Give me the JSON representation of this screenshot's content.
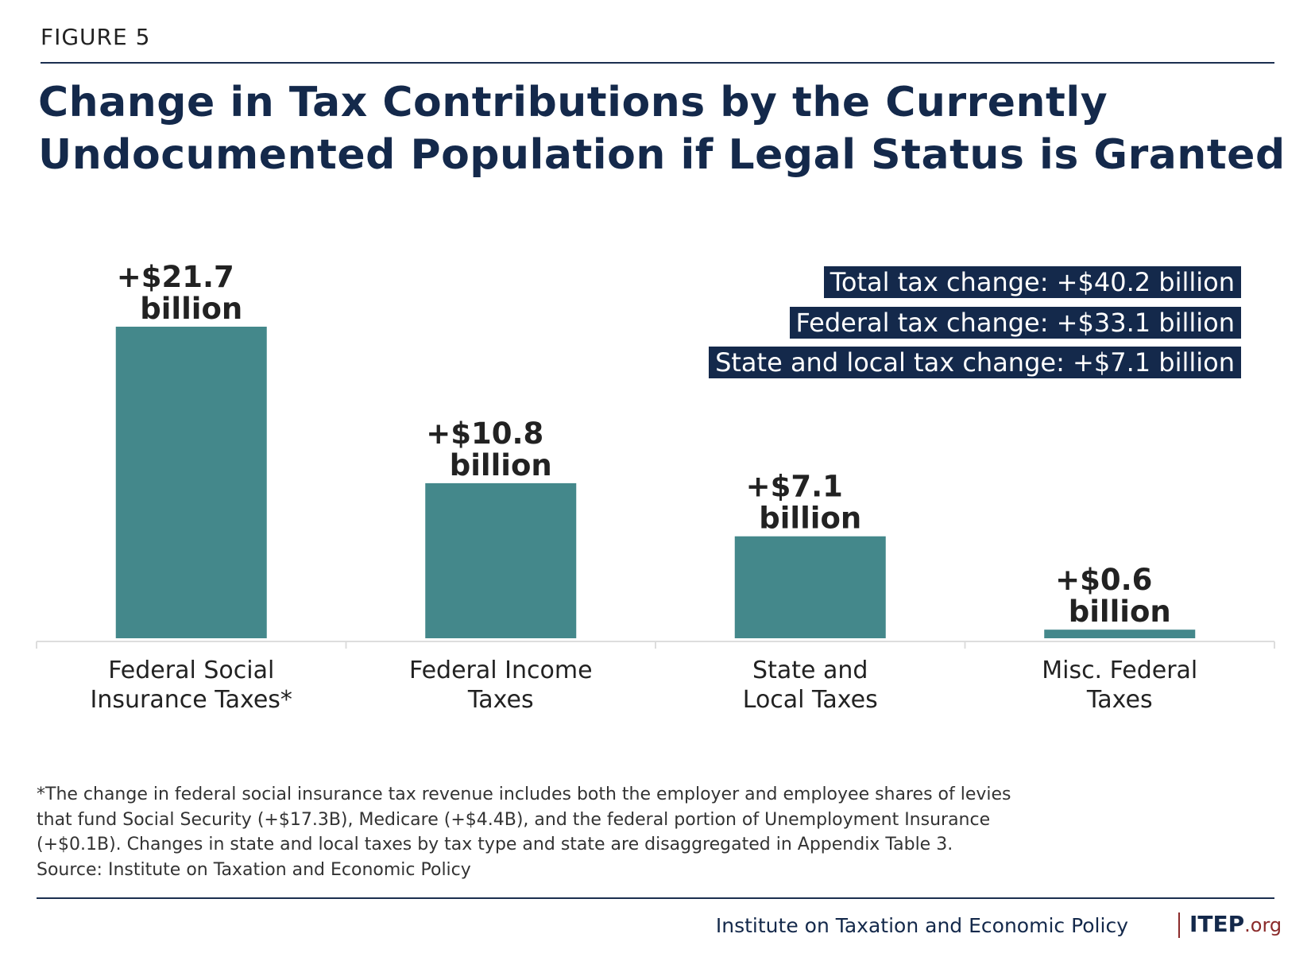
{
  "figure_label": "FIGURE 5",
  "colors": {
    "bar": "#44888b",
    "title": "#14294b",
    "box": "#14294b",
    "accent": "#8b2b2b"
  },
  "chart_data": {
    "type": "bar",
    "title": [
      "Change in Tax Contributions by the Currently",
      "Undocumented Population if Legal Status is Granted"
    ],
    "categories": [
      [
        "Federal Social",
        "Insurance Taxes*"
      ],
      [
        "Federal Income",
        "Taxes"
      ],
      [
        "State and",
        "Local Taxes"
      ],
      [
        "Misc. Federal",
        "Taxes"
      ]
    ],
    "values": [
      21.7,
      10.8,
      7.1,
      0.6
    ],
    "data_labels": [
      [
        "+$21.7",
        "billion"
      ],
      [
        "+$10.8",
        "billion"
      ],
      [
        "+$7.1",
        "billion"
      ],
      [
        "+$0.6",
        "billion"
      ]
    ],
    "unit": "billion USD",
    "ylim": [
      0,
      21.7
    ],
    "grid": false,
    "annotations": [
      "Total tax change: +$40.2 billion",
      "Federal tax change: +$33.1 billion",
      "State and local tax change: +$7.1 billion"
    ]
  },
  "footnote": [
    "*The change in federal social insurance tax revenue includes both the employer and employee shares of levies",
    "that fund Social Security (+$17.3B), Medicare (+$4.4B), and the federal portion of Unemployment Insurance",
    "(+$0.1B). Changes in state and local taxes by tax type and state are disaggregated in Appendix Table 3.",
    "Source: Institute on Taxation and Economic Policy"
  ],
  "credit": "Institute on Taxation and Economic Policy",
  "logo": {
    "main": "ITEP",
    "suffix": ".org"
  }
}
